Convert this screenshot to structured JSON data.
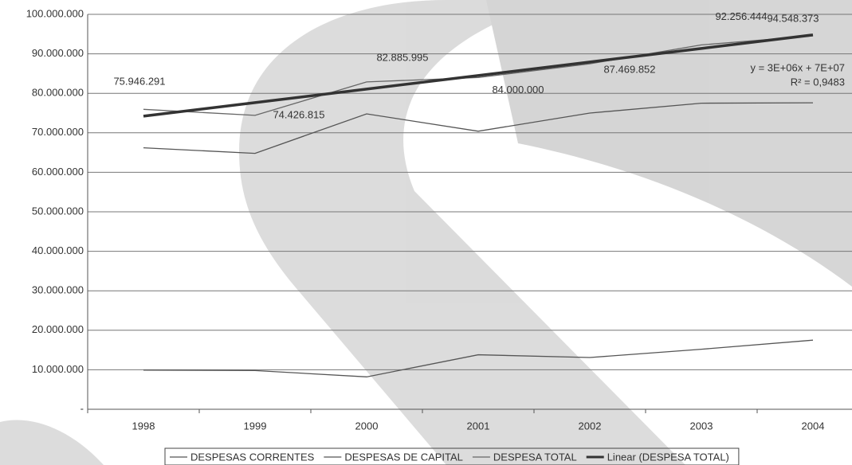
{
  "chart_data": {
    "type": "line",
    "categories": [
      "1998",
      "1999",
      "2000",
      "2001",
      "2002",
      "2003",
      "2004"
    ],
    "series": [
      {
        "name": "DESPESAS CORRENTES",
        "color": "#555555",
        "values": [
          66200000,
          64800000,
          74800000,
          70400000,
          75000000,
          77500000,
          77600000
        ]
      },
      {
        "name": "DESPESAS DE CAPITAL",
        "color": "#555555",
        "values": [
          9900000,
          9800000,
          8200000,
          13800000,
          13100000,
          15200000,
          17500000
        ]
      },
      {
        "name": "DESPESA TOTAL",
        "color": "#666666",
        "values": [
          75946291,
          74426815,
          82885995,
          84000000,
          87469852,
          92256444,
          94548373
        ],
        "value_labels": [
          "75.946.291",
          "74.426.815",
          "82.885.995",
          "84.000.000",
          "87.469.852",
          "92.256.444",
          "94.548.373"
        ]
      },
      {
        "name": "Linear (DESPESA TOTAL)",
        "color": "#333333",
        "values": [
          74215000,
          77645000,
          81075000,
          84505000,
          87935000,
          91365000,
          94795000
        ]
      }
    ],
    "annotations": [
      "y = 3E+06x + 7E+07",
      "R² = 0,9483"
    ],
    "ylim": [
      0,
      100000000
    ],
    "yticks": [
      {
        "value": 0,
        "label": "-"
      },
      {
        "value": 10000000,
        "label": "10.000.000"
      },
      {
        "value": 20000000,
        "label": "20.000.000"
      },
      {
        "value": 30000000,
        "label": "30.000.000"
      },
      {
        "value": 40000000,
        "label": "40.000.000"
      },
      {
        "value": 50000000,
        "label": "50.000.000"
      },
      {
        "value": 60000000,
        "label": "60.000.000"
      },
      {
        "value": 70000000,
        "label": "70.000.000"
      },
      {
        "value": 80000000,
        "label": "80.000.000"
      },
      {
        "value": 90000000,
        "label": "90.000.000"
      },
      {
        "value": 100000000,
        "label": "100.000.000"
      }
    ],
    "grid": true,
    "legend": "bottom"
  }
}
